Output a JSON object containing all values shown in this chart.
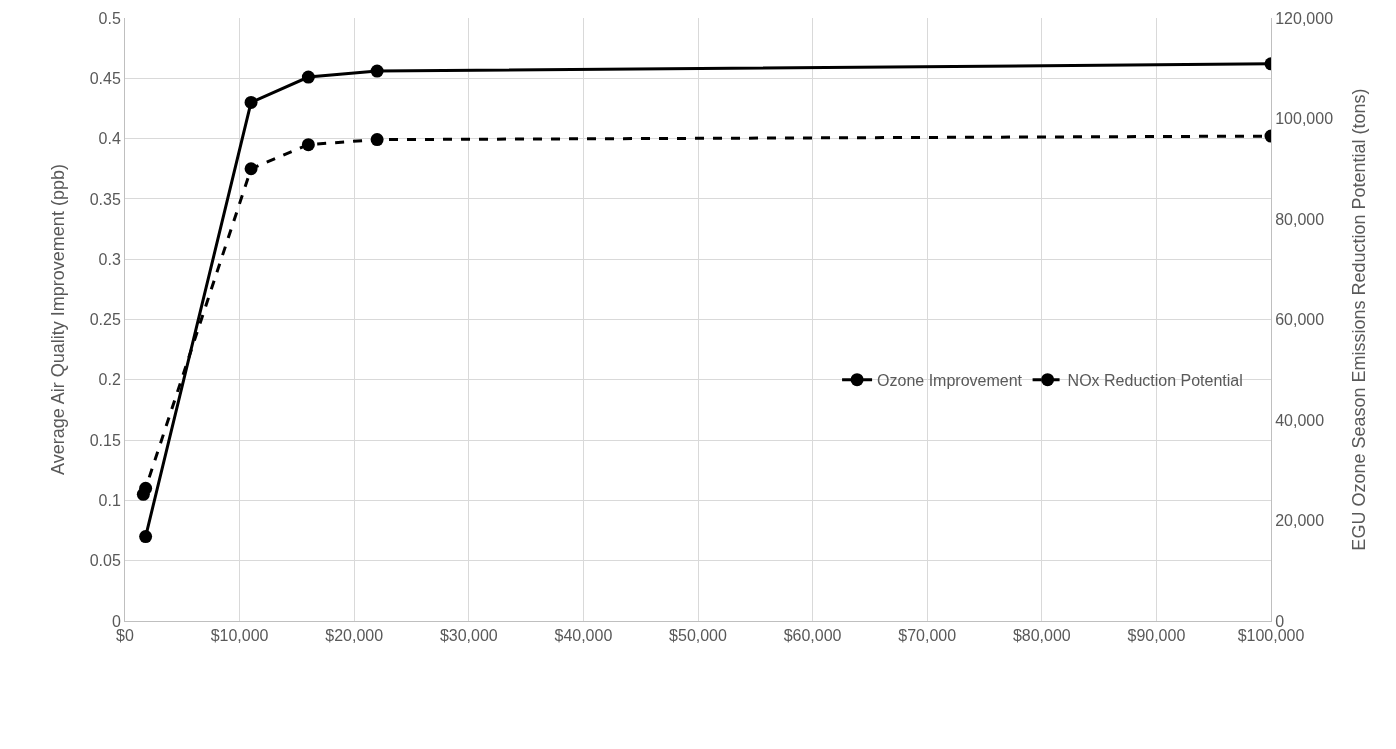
{
  "chart_data": {
    "type": "line",
    "xlabel": null,
    "ylabel": "Average Air Quality Improvement (ppb)",
    "y2label": "EGU Ozone Season Emissions Reduction Potential (tons)",
    "series": [
      {
        "name": "Ozone Improvement",
        "color": "#000000",
        "line_style": "solid",
        "x": [
          1800,
          11000,
          16000,
          22000,
          100000
        ],
        "values": [
          0.07,
          0.43,
          0.451,
          0.456,
          0.462
        ]
      },
      {
        "name": "NOx Reduction Potential",
        "color": "#000000",
        "line_style": "dashed",
        "axis": "y2",
        "x": [
          1600,
          1800,
          11000,
          16000,
          22000,
          100000
        ],
        "values": [
          25200,
          26400,
          90000,
          94800,
          95800,
          96500
        ]
      }
    ],
    "xlim": [
      0,
      100000
    ],
    "xticks": [
      {
        "value": 0,
        "label": "$0"
      },
      {
        "value": 10000,
        "label": "$10,000"
      },
      {
        "value": 20000,
        "label": "$20,000"
      },
      {
        "value": 30000,
        "label": "$30,000"
      },
      {
        "value": 40000,
        "label": "$40,000"
      },
      {
        "value": 50000,
        "label": "$50,000"
      },
      {
        "value": 60000,
        "label": "$60,000"
      },
      {
        "value": 70000,
        "label": "$70,000"
      },
      {
        "value": 80000,
        "label": "$80,000"
      },
      {
        "value": 90000,
        "label": "$90,000"
      },
      {
        "value": 100000,
        "label": "$100,000"
      }
    ],
    "ylim": [
      0,
      0.5
    ],
    "yticks": [
      0,
      0.05,
      0.1,
      0.15,
      0.2,
      0.25,
      0.3,
      0.35,
      0.4,
      0.45,
      0.5
    ],
    "y2lim": [
      0,
      120000
    ],
    "y2ticks": [
      {
        "value": 0,
        "label": "0"
      },
      {
        "value": 20000,
        "label": "20,000"
      },
      {
        "value": 40000,
        "label": "40,000"
      },
      {
        "value": 60000,
        "label": "60,000"
      },
      {
        "value": 80000,
        "label": "80,000"
      },
      {
        "value": 100000,
        "label": "100,000"
      },
      {
        "value": 120000,
        "label": "120,000"
      }
    ],
    "grid": true,
    "legend": "right",
    "marker": "circle"
  }
}
